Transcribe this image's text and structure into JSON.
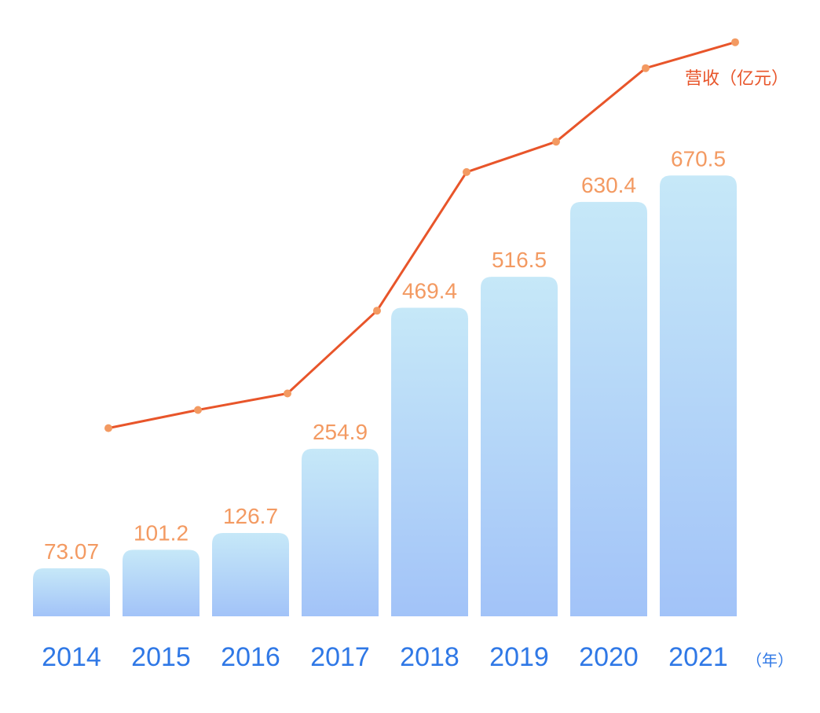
{
  "chart_data": {
    "type": "bar",
    "categories": [
      "2014",
      "2015",
      "2016",
      "2017",
      "2018",
      "2019",
      "2020",
      "2021"
    ],
    "values": [
      73.07,
      101.2,
      126.7,
      254.9,
      469.4,
      516.5,
      630.4,
      670.5
    ],
    "value_labels": [
      "73.07",
      "101.2",
      "126.7",
      "254.9",
      "469.4",
      "516.5",
      "630.4",
      "670.5"
    ],
    "series": [
      {
        "name": "营收（亿元）",
        "values": [
          73.07,
          101.2,
          126.7,
          254.9,
          469.4,
          516.5,
          630.4,
          670.5
        ]
      }
    ],
    "x_unit": "（年）",
    "ylim": [
      0,
      700
    ],
    "grid": false,
    "legend": "top-right",
    "colors": {
      "bar_top": "#c6e8f8",
      "bar_bottom": "#a2c3f8",
      "line": "#e8552a",
      "marker": "#f39a62",
      "value_label": "#f39a62",
      "year_label": "#2f78e6"
    }
  }
}
